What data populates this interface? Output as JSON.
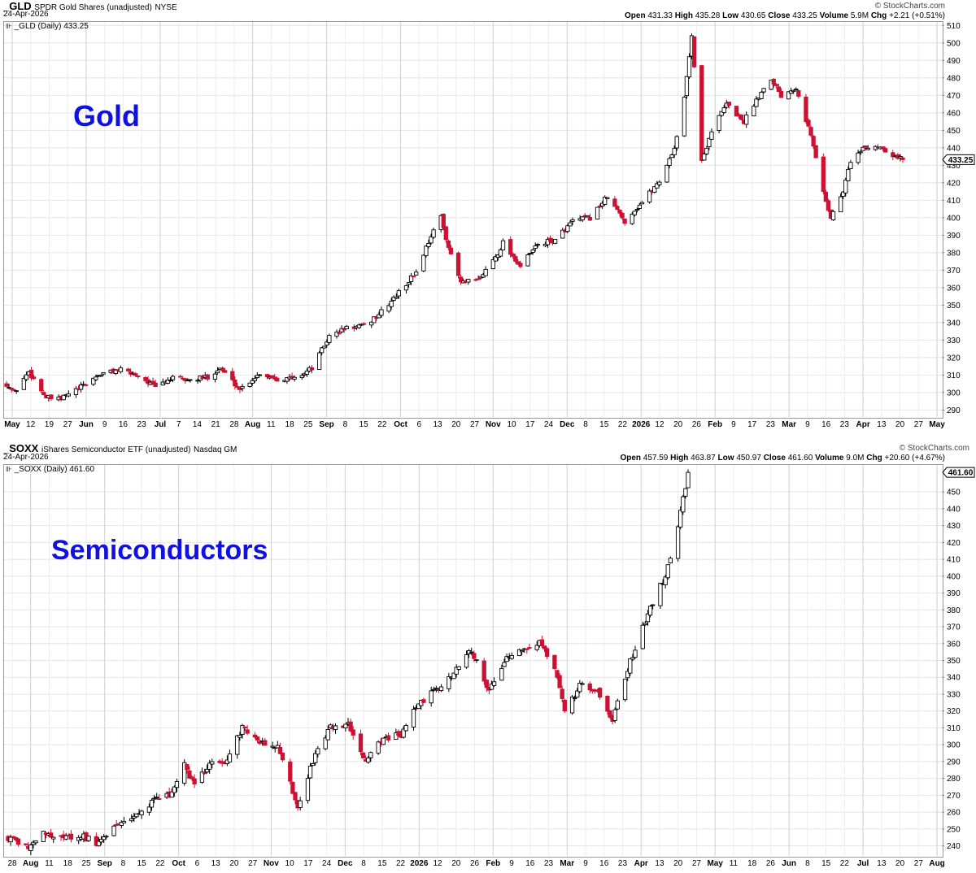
{
  "panels": [
    {
      "symbol": "_GLD",
      "description": "SPDR Gold Shares (unadjusted)",
      "exchange": "NYSE",
      "date": "24-Apr-2026",
      "brand": "© StockCharts.com",
      "ohlc": {
        "open_label": "Open",
        "open": "431.33",
        "high_label": "High",
        "high": "435.28",
        "low_label": "Low",
        "low": "430.65",
        "close_label": "Close",
        "close": "433.25",
        "volume_label": "Volume",
        "volume": "5.9M",
        "chg_label": "Chg",
        "chg": "+2.21 (+0.51%)"
      },
      "series_label": "_GLD (Daily) 433.25",
      "price_badge": "433.25",
      "annotation": "Gold"
    },
    {
      "symbol": "_SOXX",
      "description": "iShares Semiconductor ETF (unadjusted)",
      "exchange": "Nasdaq GM",
      "date": "24-Apr-2026",
      "brand": "© StockCharts.com",
      "ohlc": {
        "open_label": "Open",
        "open": "457.59",
        "high_label": "High",
        "high": "463.87",
        "low_label": "Low",
        "low": "450.97",
        "close_label": "Close",
        "close": "461.60",
        "volume_label": "Volume",
        "volume": "9.0M",
        "chg_label": "Chg",
        "chg": "+20.60 (+4.67%)"
      },
      "series_label": "_SOXX (Daily) 461.60",
      "price_badge": "461.60",
      "annotation": "Semiconductors"
    }
  ],
  "chart_data": [
    {
      "type": "candlestick",
      "title": "_GLD SPDR Gold Shares (unadjusted) NYSE",
      "ylim": [
        286,
        512
      ],
      "y_ticks": [
        290,
        300,
        310,
        320,
        330,
        340,
        350,
        360,
        370,
        380,
        390,
        400,
        410,
        420,
        430,
        440,
        450,
        460,
        470,
        480,
        490,
        500,
        510
      ],
      "x_labels": [
        "May",
        "12",
        "19",
        "27",
        "Jun",
        "9",
        "16",
        "23",
        "Jul",
        "7",
        "14",
        "21",
        "28",
        "Aug",
        "11",
        "18",
        "25",
        "Sep",
        "8",
        "15",
        "22",
        "Oct",
        "6",
        "13",
        "20",
        "27",
        "Nov",
        "10",
        "17",
        "24",
        "Dec",
        "8",
        "15",
        "22",
        "2026",
        "12",
        "20",
        "26",
        "Feb",
        "9",
        "17",
        "23",
        "Mar",
        "9",
        "16",
        "23",
        "Apr",
        "13",
        "20",
        "27",
        "May"
      ],
      "x_label_bold": [
        "May",
        "Jun",
        "Jul",
        "Aug",
        "Sep",
        "Oct",
        "Nov",
        "Dec",
        "2026",
        "Feb",
        "Mar",
        "Apr"
      ],
      "closes": [
        {
          "date": "2025-04-28",
          "close": 305
        },
        {
          "date": "2025-05-01",
          "close": 300
        },
        {
          "date": "2025-05-07",
          "close": 312
        },
        {
          "date": "2025-05-14",
          "close": 297
        },
        {
          "date": "2025-05-19",
          "close": 296
        },
        {
          "date": "2025-05-28",
          "close": 303
        },
        {
          "date": "2025-06-04",
          "close": 310
        },
        {
          "date": "2025-06-12",
          "close": 313
        },
        {
          "date": "2025-06-20",
          "close": 310
        },
        {
          "date": "2025-06-27",
          "close": 303
        },
        {
          "date": "2025-07-03",
          "close": 308
        },
        {
          "date": "2025-07-11",
          "close": 307
        },
        {
          "date": "2025-07-18",
          "close": 309
        },
        {
          "date": "2025-07-23",
          "close": 314
        },
        {
          "date": "2025-07-31",
          "close": 302
        },
        {
          "date": "2025-08-08",
          "close": 311
        },
        {
          "date": "2025-08-15",
          "close": 308
        },
        {
          "date": "2025-08-22",
          "close": 308
        },
        {
          "date": "2025-08-29",
          "close": 314
        },
        {
          "date": "2025-09-05",
          "close": 332
        },
        {
          "date": "2025-09-12",
          "close": 337
        },
        {
          "date": "2025-09-19",
          "close": 338
        },
        {
          "date": "2025-09-26",
          "close": 346
        },
        {
          "date": "2025-10-03",
          "close": 357
        },
        {
          "date": "2025-10-10",
          "close": 369
        },
        {
          "date": "2025-10-16",
          "close": 390
        },
        {
          "date": "2025-10-20",
          "close": 400
        },
        {
          "date": "2025-10-24",
          "close": 378
        },
        {
          "date": "2025-10-28",
          "close": 363
        },
        {
          "date": "2025-11-04",
          "close": 364
        },
        {
          "date": "2025-11-12",
          "close": 380
        },
        {
          "date": "2025-11-14",
          "close": 386
        },
        {
          "date": "2025-11-21",
          "close": 372
        },
        {
          "date": "2025-11-28",
          "close": 385
        },
        {
          "date": "2025-12-05",
          "close": 387
        },
        {
          "date": "2025-12-12",
          "close": 398
        },
        {
          "date": "2025-12-19",
          "close": 400
        },
        {
          "date": "2025-12-26",
          "close": 412
        },
        {
          "date": "2026-01-02",
          "close": 398
        },
        {
          "date": "2026-01-09",
          "close": 409
        },
        {
          "date": "2026-01-16",
          "close": 421
        },
        {
          "date": "2026-01-22",
          "close": 440
        },
        {
          "date": "2026-01-26",
          "close": 468
        },
        {
          "date": "2026-01-29",
          "close": 505
        },
        {
          "date": "2026-02-02",
          "close": 432
        },
        {
          "date": "2026-02-06",
          "close": 450
        },
        {
          "date": "2026-02-12",
          "close": 465
        },
        {
          "date": "2026-02-19",
          "close": 455
        },
        {
          "date": "2026-02-25",
          "close": 470
        },
        {
          "date": "2026-03-02",
          "close": 480
        },
        {
          "date": "2026-03-06",
          "close": 470
        },
        {
          "date": "2026-03-12",
          "close": 475
        },
        {
          "date": "2026-03-18",
          "close": 447
        },
        {
          "date": "2026-03-23",
          "close": 415
        },
        {
          "date": "2026-03-26",
          "close": 400
        },
        {
          "date": "2026-03-31",
          "close": 415
        },
        {
          "date": "2026-04-03",
          "close": 433
        },
        {
          "date": "2026-04-09",
          "close": 440
        },
        {
          "date": "2026-04-15",
          "close": 441
        },
        {
          "date": "2026-04-20",
          "close": 436
        },
        {
          "date": "2026-04-24",
          "close": 433.25
        }
      ]
    },
    {
      "type": "candlestick",
      "title": "_SOXX iShares Semiconductor ETF (unadjusted) Nasdaq GM",
      "ylim": [
        234,
        466
      ],
      "y_ticks": [
        240,
        250,
        260,
        270,
        280,
        290,
        300,
        310,
        320,
        330,
        340,
        350,
        360,
        370,
        380,
        390,
        400,
        410,
        420,
        430,
        440,
        450
      ],
      "x_labels": [
        "28",
        "Aug",
        "11",
        "18",
        "25",
        "Sep",
        "8",
        "15",
        "22",
        "Oct",
        "6",
        "13",
        "20",
        "27",
        "Nov",
        "10",
        "17",
        "24",
        "Dec",
        "8",
        "15",
        "22",
        "2026",
        "12",
        "20",
        "26",
        "Feb",
        "9",
        "16",
        "23",
        "Mar",
        "9",
        "16",
        "23",
        "Apr",
        "13",
        "20",
        "27",
        "May",
        "11",
        "18",
        "26",
        "Jun",
        "8",
        "15",
        "22",
        "Jul",
        "13",
        "20",
        "27",
        "Aug"
      ],
      "x_label_bold": [
        "Aug",
        "Sep",
        "Oct",
        "Nov",
        "Dec",
        "2026",
        "Feb",
        "Mar",
        "Apr",
        "May",
        "Jun",
        "Jul",
        "Aug"
      ],
      "closes": [
        {
          "date": "2025-07-28",
          "close": 245
        },
        {
          "date": "2025-08-05",
          "close": 240
        },
        {
          "date": "2025-08-12",
          "close": 248
        },
        {
          "date": "2025-08-19",
          "close": 244
        },
        {
          "date": "2025-08-26",
          "close": 246
        },
        {
          "date": "2025-09-02",
          "close": 241
        },
        {
          "date": "2025-09-09",
          "close": 252
        },
        {
          "date": "2025-09-16",
          "close": 258
        },
        {
          "date": "2025-09-23",
          "close": 266
        },
        {
          "date": "2025-09-30",
          "close": 270
        },
        {
          "date": "2025-10-06",
          "close": 288
        },
        {
          "date": "2025-10-10",
          "close": 276
        },
        {
          "date": "2025-10-16",
          "close": 288
        },
        {
          "date": "2025-10-22",
          "close": 290
        },
        {
          "date": "2025-10-29",
          "close": 310
        },
        {
          "date": "2025-11-04",
          "close": 302
        },
        {
          "date": "2025-11-12",
          "close": 298
        },
        {
          "date": "2025-11-20",
          "close": 264
        },
        {
          "date": "2025-11-26",
          "close": 290
        },
        {
          "date": "2025-12-03",
          "close": 310
        },
        {
          "date": "2025-12-10",
          "close": 312
        },
        {
          "date": "2025-12-17",
          "close": 290
        },
        {
          "date": "2025-12-24",
          "close": 304
        },
        {
          "date": "2025-12-31",
          "close": 306
        },
        {
          "date": "2026-01-07",
          "close": 325
        },
        {
          "date": "2026-01-14",
          "close": 332
        },
        {
          "date": "2026-01-21",
          "close": 342
        },
        {
          "date": "2026-01-28",
          "close": 356
        },
        {
          "date": "2026-02-04",
          "close": 332
        },
        {
          "date": "2026-02-10",
          "close": 350
        },
        {
          "date": "2026-02-17",
          "close": 356
        },
        {
          "date": "2026-02-24",
          "close": 360
        },
        {
          "date": "2026-03-02",
          "close": 345
        },
        {
          "date": "2026-03-06",
          "close": 320
        },
        {
          "date": "2026-03-13",
          "close": 337
        },
        {
          "date": "2026-03-20",
          "close": 330
        },
        {
          "date": "2026-03-25",
          "close": 315
        },
        {
          "date": "2026-03-31",
          "close": 345
        },
        {
          "date": "2026-04-06",
          "close": 370
        },
        {
          "date": "2026-04-10",
          "close": 385
        },
        {
          "date": "2026-04-15",
          "close": 400
        },
        {
          "date": "2026-04-20",
          "close": 430
        },
        {
          "date": "2026-04-24",
          "close": 461.6
        }
      ]
    }
  ]
}
